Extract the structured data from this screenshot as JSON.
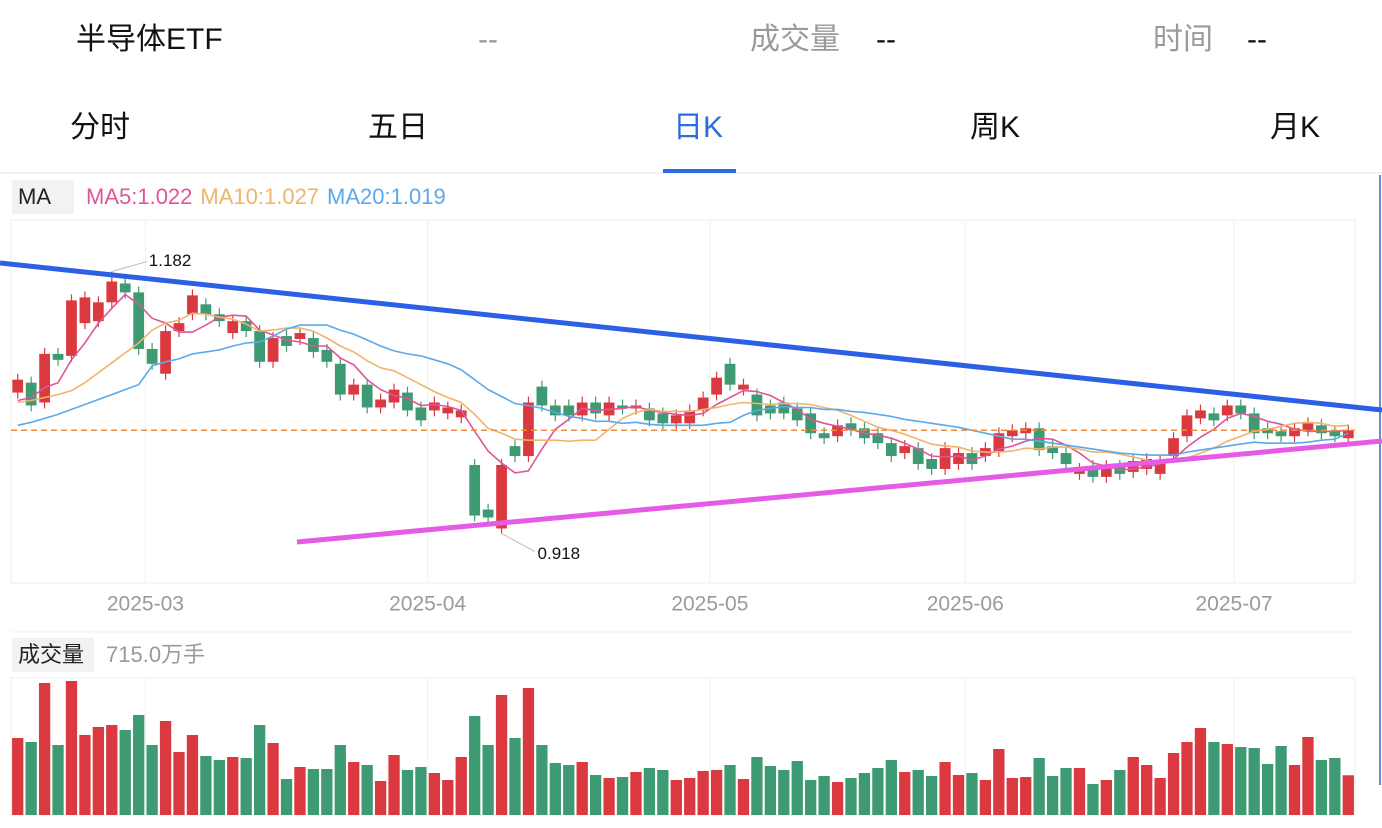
{
  "header": {
    "title": "半导体ETF",
    "price": "--",
    "volume_label": "成交量",
    "volume_value": "--",
    "time_label": "时间",
    "time_value": "--"
  },
  "tabs": [
    {
      "label": "分时",
      "active": false
    },
    {
      "label": "五日",
      "active": false
    },
    {
      "label": "日K",
      "active": true
    },
    {
      "label": "周K",
      "active": false
    },
    {
      "label": "月K",
      "active": false
    }
  ],
  "chart_data": {
    "type": "candlestick",
    "indicator": "MA",
    "up_color": "#d9393f",
    "down_color": "#3e9a73",
    "ylim": [
      0.868,
      1.234
    ],
    "max_annotation": 1.182,
    "min_annotation": 0.918,
    "categories": [
      null,
      null,
      null,
      null,
      null,
      null,
      null,
      null,
      null,
      null,
      "2025-03",
      null,
      null,
      null,
      null,
      null,
      null,
      null,
      null,
      null,
      null,
      null,
      null,
      null,
      null,
      null,
      null,
      null,
      null,
      null,
      null,
      "2025-04",
      null,
      null,
      null,
      null,
      null,
      null,
      null,
      null,
      null,
      null,
      null,
      null,
      null,
      null,
      null,
      null,
      null,
      null,
      null,
      null,
      "2025-05",
      null,
      null,
      null,
      null,
      null,
      null,
      null,
      null,
      null,
      null,
      null,
      null,
      null,
      null,
      null,
      null,
      null,
      null,
      "2025-06",
      null,
      null,
      null,
      null,
      null,
      null,
      null,
      null,
      null,
      null,
      null,
      null,
      null,
      null,
      null,
      null,
      null,
      null,
      null,
      "2025-07",
      null,
      null,
      null,
      null,
      null,
      null,
      null,
      null
    ],
    "open": [
      1.06,
      1.07,
      1.05,
      1.099,
      1.097,
      1.13,
      1.132,
      1.151,
      1.17,
      1.161,
      1.104,
      1.079,
      1.122,
      1.139,
      1.149,
      1.139,
      1.12,
      1.132,
      1.122,
      1.091,
      1.117,
      1.114,
      1.115,
      1.103,
      1.089,
      1.058,
      1.068,
      1.045,
      1.05,
      1.06,
      1.045,
      1.042,
      1.039,
      1.035,
      0.987,
      0.942,
      0.923,
      1.006,
      0.996,
      1.066,
      1.047,
      1.047,
      1.037,
      1.05,
      1.037,
      1.047,
      1.044,
      1.044,
      1.039,
      1.029,
      1.029,
      1.042,
      1.058,
      1.089,
      1.063,
      1.058,
      1.047,
      1.05,
      1.044,
      1.039,
      1.019,
      1.016,
      1.029,
      1.024,
      1.019,
      1.009,
      0.999,
      1.004,
      0.993,
      0.983,
      0.988,
      0.999,
      0.996,
      1.001,
      1.016,
      1.019,
      1.024,
      1.006,
      0.999,
      0.978,
      0.986,
      0.975,
      0.986,
      0.98,
      0.983,
      0.978,
      0.996,
      1.016,
      1.034,
      1.039,
      1.037,
      1.047,
      1.039,
      1.024,
      1.021,
      1.016,
      1.022,
      1.027,
      1.021,
      1.014
    ],
    "high": [
      1.079,
      1.076,
      1.105,
      1.105,
      1.159,
      1.162,
      1.157,
      1.182,
      1.176,
      1.167,
      1.11,
      1.128,
      1.136,
      1.164,
      1.155,
      1.145,
      1.138,
      1.138,
      1.128,
      1.121,
      1.123,
      1.126,
      1.121,
      1.109,
      1.095,
      1.074,
      1.074,
      1.059,
      1.069,
      1.066,
      1.051,
      1.056,
      1.051,
      1.048,
      0.993,
      0.948,
      0.993,
      1.012,
      1.056,
      1.072,
      1.053,
      1.053,
      1.056,
      1.056,
      1.056,
      1.053,
      1.053,
      1.05,
      1.045,
      1.043,
      1.048,
      1.061,
      1.081,
      1.095,
      1.074,
      1.064,
      1.053,
      1.056,
      1.05,
      1.045,
      1.025,
      1.033,
      1.035,
      1.03,
      1.025,
      1.015,
      1.012,
      1.01,
      0.999,
      1.01,
      1.005,
      1.005,
      1.01,
      1.025,
      1.028,
      1.03,
      1.03,
      1.012,
      1.005,
      0.989,
      0.992,
      0.992,
      0.992,
      0.997,
      0.999,
      0.997,
      1.02,
      1.043,
      1.048,
      1.045,
      1.053,
      1.053,
      1.045,
      1.03,
      1.027,
      1.03,
      1.035,
      1.033,
      1.027,
      1.028
    ],
    "low": [
      1.054,
      1.041,
      1.044,
      1.087,
      1.091,
      1.124,
      1.126,
      1.145,
      1.155,
      1.098,
      1.083,
      1.073,
      1.116,
      1.133,
      1.133,
      1.126,
      1.114,
      1.116,
      1.085,
      1.085,
      1.101,
      1.108,
      1.095,
      1.085,
      1.052,
      1.052,
      1.039,
      1.039,
      1.044,
      1.036,
      1.026,
      1.036,
      1.033,
      1.029,
      0.93,
      0.928,
      0.918,
      0.99,
      0.99,
      1.041,
      1.031,
      1.031,
      1.031,
      1.033,
      1.031,
      1.038,
      1.038,
      1.026,
      1.023,
      1.023,
      1.023,
      1.036,
      1.052,
      1.062,
      1.057,
      1.031,
      1.033,
      1.033,
      1.026,
      1.013,
      1.008,
      1.01,
      1.016,
      1.008,
      1.003,
      0.99,
      0.993,
      0.982,
      0.977,
      0.977,
      0.982,
      0.982,
      0.99,
      0.995,
      1.01,
      1.013,
      0.996,
      0.993,
      0.982,
      0.972,
      0.969,
      0.969,
      0.972,
      0.974,
      0.977,
      0.972,
      0.99,
      1.01,
      1.028,
      1.026,
      1.031,
      1.033,
      1.013,
      1.013,
      1.01,
      1.01,
      1.016,
      1.013,
      1.01,
      1.008
    ],
    "close": [
      1.073,
      1.047,
      1.099,
      1.093,
      1.153,
      1.156,
      1.151,
      1.172,
      1.161,
      1.104,
      1.089,
      1.122,
      1.13,
      1.158,
      1.139,
      1.132,
      1.132,
      1.122,
      1.091,
      1.115,
      1.107,
      1.12,
      1.101,
      1.091,
      1.058,
      1.068,
      1.045,
      1.053,
      1.063,
      1.042,
      1.032,
      1.05,
      1.045,
      1.042,
      0.936,
      0.934,
      0.987,
      0.996,
      1.05,
      1.047,
      1.037,
      1.037,
      1.05,
      1.039,
      1.05,
      1.044,
      1.047,
      1.032,
      1.029,
      1.037,
      1.042,
      1.055,
      1.075,
      1.068,
      1.068,
      1.037,
      1.039,
      1.039,
      1.032,
      1.019,
      1.014,
      1.027,
      1.022,
      1.014,
      1.009,
      0.996,
      1.006,
      0.988,
      0.983,
      1.004,
      0.999,
      0.988,
      1.004,
      1.019,
      1.022,
      1.024,
      1.002,
      0.999,
      0.988,
      0.983,
      0.975,
      0.986,
      0.978,
      0.991,
      0.993,
      0.991,
      1.014,
      1.037,
      1.042,
      1.032,
      1.047,
      1.039,
      1.019,
      1.019,
      1.016,
      1.024,
      1.029,
      1.019,
      1.016,
      1.022
    ],
    "series": [
      {
        "name": "MA5:1.022",
        "color": "#e0559a",
        "values": [
          1.052,
          1.055,
          1.065,
          1.07,
          1.093,
          1.11,
          1.13,
          1.145,
          1.159,
          1.149,
          1.135,
          1.13,
          1.121,
          1.121,
          1.128,
          1.136,
          1.138,
          1.137,
          1.123,
          1.118,
          1.113,
          1.111,
          1.107,
          1.107,
          1.095,
          1.088,
          1.073,
          1.063,
          1.057,
          1.054,
          1.047,
          1.048,
          1.046,
          1.042,
          1.021,
          1.001,
          0.989,
          0.979,
          0.981,
          1.003,
          1.023,
          1.033,
          1.044,
          1.042,
          1.043,
          1.044,
          1.046,
          1.042,
          1.04,
          1.038,
          1.037,
          1.039,
          1.048,
          1.055,
          1.062,
          1.061,
          1.057,
          1.05,
          1.043,
          1.033,
          1.029,
          1.026,
          1.023,
          1.019,
          1.017,
          1.014,
          1.009,
          1.003,
          0.996,
          0.995,
          0.996,
          0.992,
          0.996,
          1.003,
          1.006,
          1.011,
          1.014,
          1.013,
          1.007,
          0.999,
          0.989,
          0.986,
          0.982,
          0.983,
          0.985,
          0.988,
          0.993,
          1.005,
          1.015,
          1.023,
          1.034,
          1.039,
          1.036,
          1.031,
          1.028,
          1.023,
          1.021,
          1.021,
          1.021,
          1.022
        ]
      },
      {
        "name": "MA10:1.027",
        "color": "#f0b46a",
        "values": [
          1.05,
          1.052,
          1.055,
          1.058,
          1.062,
          1.07,
          1.08,
          1.09,
          1.1,
          1.11,
          1.123,
          1.13,
          1.133,
          1.14,
          1.139,
          1.136,
          1.134,
          1.129,
          1.122,
          1.123,
          1.125,
          1.125,
          1.122,
          1.115,
          1.107,
          1.101,
          1.092,
          1.085,
          1.082,
          1.075,
          1.068,
          1.061,
          1.055,
          1.05,
          1.038,
          1.024,
          1.019,
          1.013,
          1.012,
          1.012,
          1.012,
          1.011,
          1.012,
          1.012,
          1.023,
          1.034,
          1.04,
          1.043,
          1.041,
          1.041,
          1.041,
          1.043,
          1.045,
          1.048,
          1.05,
          1.049,
          1.048,
          1.049,
          1.049,
          1.048,
          1.045,
          1.042,
          1.037,
          1.031,
          1.025,
          1.022,
          1.018,
          1.013,
          1.008,
          1.006,
          1.005,
          1.001,
          1.0,
          1.0,
          1.001,
          1.004,
          1.003,
          1.005,
          1.005,
          1.003,
          1.0,
          1.0,
          0.998,
          0.995,
          0.992,
          0.989,
          0.99,
          0.994,
          0.999,
          1.004,
          1.011,
          1.016,
          1.021,
          1.023,
          1.026,
          1.029,
          1.03,
          1.029,
          1.026,
          1.027
        ]
      },
      {
        "name": "MA20:1.019",
        "color": "#5ba9ea",
        "values": [
          1.027,
          1.03,
          1.034,
          1.038,
          1.043,
          1.048,
          1.053,
          1.058,
          1.063,
          1.068,
          1.087,
          1.091,
          1.094,
          1.099,
          1.101,
          1.103,
          1.107,
          1.11,
          1.111,
          1.117,
          1.124,
          1.128,
          1.128,
          1.128,
          1.123,
          1.119,
          1.113,
          1.107,
          1.102,
          1.099,
          1.097,
          1.093,
          1.089,
          1.083,
          1.073,
          1.063,
          1.056,
          1.049,
          1.047,
          1.044,
          1.04,
          1.036,
          1.034,
          1.031,
          1.031,
          1.029,
          1.03,
          1.028,
          1.027,
          1.027,
          1.027,
          1.027,
          1.029,
          1.03,
          1.037,
          1.042,
          1.044,
          1.046,
          1.045,
          1.045,
          1.043,
          1.043,
          1.041,
          1.04,
          1.038,
          1.036,
          1.033,
          1.031,
          1.029,
          1.027,
          1.025,
          1.022,
          1.019,
          1.016,
          1.013,
          1.013,
          1.011,
          1.009,
          1.007,
          1.005,
          1.003,
          1.001,
          0.999,
          0.998,
          0.997,
          0.997,
          0.997,
          1.0,
          1.002,
          1.004,
          1.006,
          1.008,
          1.01,
          1.009,
          1.009,
          1.009,
          1.01,
          1.012,
          1.013,
          1.019
        ]
      }
    ],
    "volume": {
      "title": "成交量",
      "current": "715.0万手",
      "ylim": [
        0,
        2466
      ],
      "values": [
        1386,
        1314,
        2376,
        1260,
        2412,
        1440,
        1584,
        1620,
        1530,
        1800,
        1260,
        1692,
        1134,
        1440,
        1062,
        990,
        1044,
        1026,
        1620,
        1296,
        648,
        864,
        828,
        828,
        1260,
        954,
        900,
        612,
        1080,
        810,
        864,
        756,
        630,
        1044,
        1782,
        1260,
        2160,
        1386,
        2286,
        1260,
        936,
        900,
        954,
        720,
        666,
        684,
        774,
        846,
        810,
        630,
        666,
        792,
        810,
        900,
        648,
        1044,
        882,
        810,
        972,
        630,
        702,
        594,
        666,
        756,
        846,
        990,
        774,
        810,
        702,
        954,
        720,
        756,
        630,
        1188,
        666,
        684,
        1026,
        702,
        846,
        846,
        558,
        630,
        810,
        1044,
        900,
        666,
        1116,
        1314,
        1566,
        1314,
        1278,
        1224,
        1206,
        918,
        1242,
        900,
        1404,
        990,
        1026,
        715
      ]
    }
  }
}
